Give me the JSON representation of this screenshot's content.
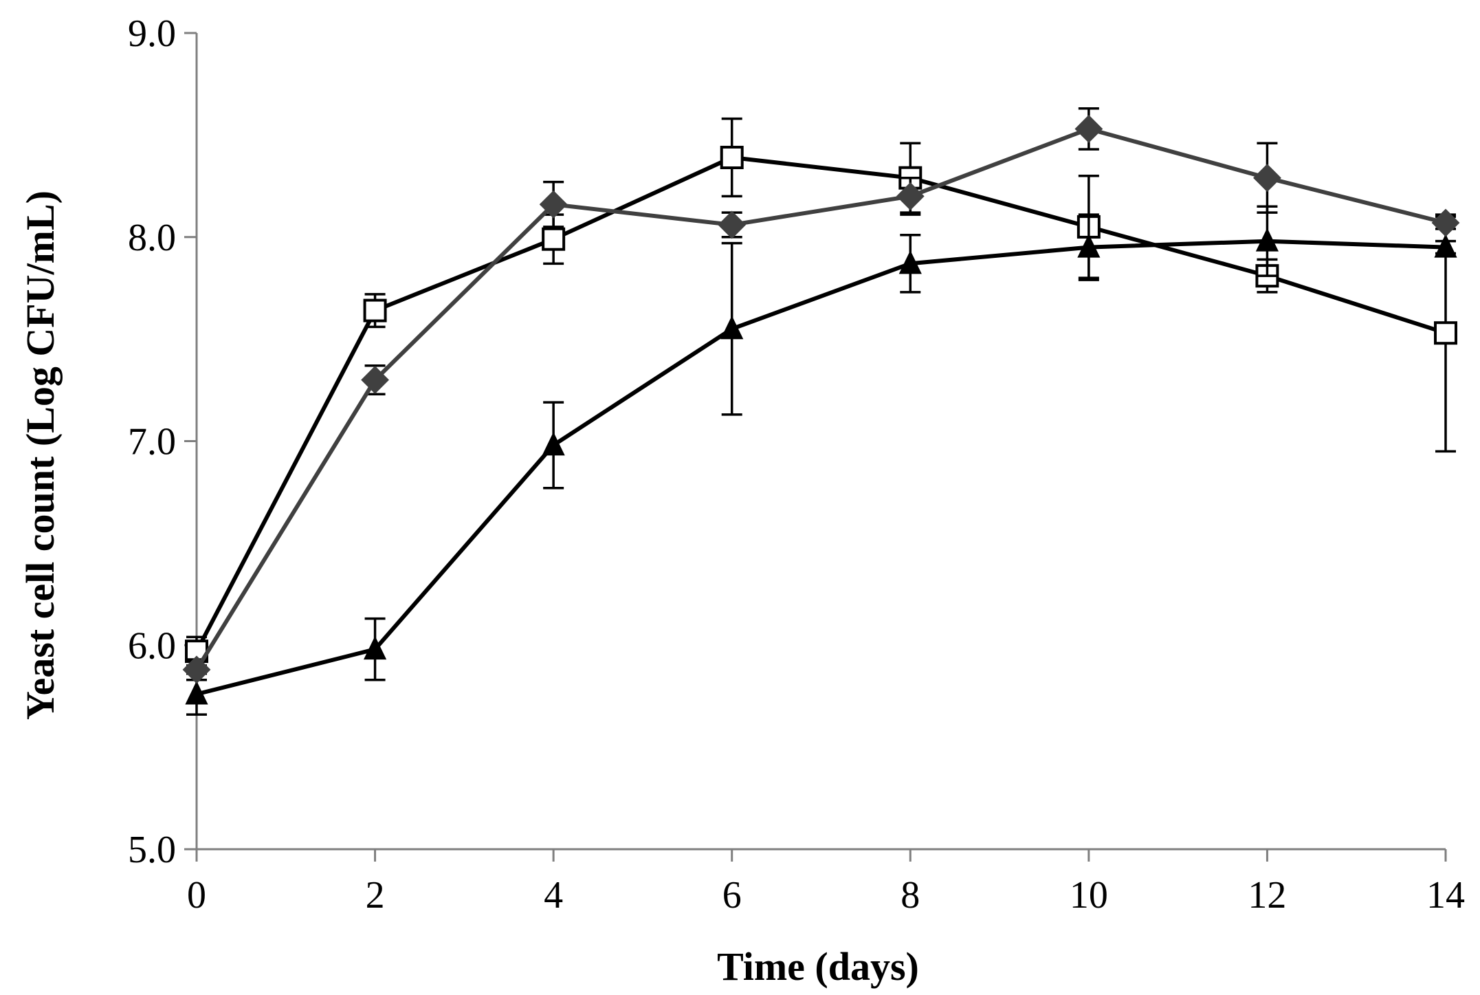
{
  "chart_data": {
    "type": "line",
    "xlabel": "Time (days)",
    "ylabel": "Yeast cell count (Log CFU/mL)",
    "xlim": [
      0,
      14
    ],
    "ylim": [
      5.0,
      9.0
    ],
    "x_ticks": [
      "0",
      "2",
      "4",
      "6",
      "8",
      "10",
      "12",
      "14"
    ],
    "y_ticks": [
      "5.0",
      "6.0",
      "7.0",
      "8.0",
      "9.0"
    ],
    "grid": false,
    "legend": "none",
    "x": [
      0,
      2,
      4,
      6,
      8,
      10,
      12,
      14
    ],
    "series": [
      {
        "marker": "open-square",
        "color": "#000000",
        "values": [
          5.97,
          7.64,
          7.99,
          8.39,
          8.29,
          8.05,
          7.81,
          7.53
        ],
        "errors": [
          0.07,
          0.08,
          0.12,
          0.19,
          0.17,
          0.25,
          0.08,
          0.58
        ]
      },
      {
        "marker": "filled-diamond",
        "color": "#404040",
        "values": [
          5.88,
          7.3,
          8.16,
          8.06,
          8.2,
          8.53,
          8.29,
          8.07
        ],
        "errors": [
          0.05,
          0.07,
          0.11,
          0.06,
          0.09,
          0.1,
          0.17,
          0.03
        ]
      },
      {
        "marker": "filled-triangle",
        "color": "#000000",
        "values": [
          5.76,
          5.98,
          6.98,
          7.55,
          7.87,
          7.95,
          7.98,
          7.95
        ],
        "errors": [
          0.1,
          0.15,
          0.21,
          0.42,
          0.14,
          0.16,
          0.17,
          0.03
        ]
      }
    ]
  }
}
